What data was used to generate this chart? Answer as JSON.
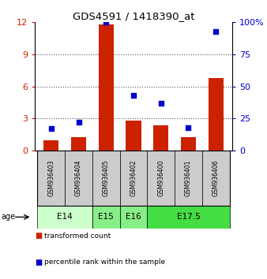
{
  "title": "GDS4591 / 1418390_at",
  "samples": [
    "GSM936403",
    "GSM936404",
    "GSM936405",
    "GSM936402",
    "GSM936400",
    "GSM936401",
    "GSM936406"
  ],
  "red_values": [
    1.0,
    1.3,
    11.8,
    2.8,
    2.4,
    1.3,
    6.8
  ],
  "blue_values": [
    17,
    22,
    100,
    43,
    37,
    18,
    93
  ],
  "ylim_left": [
    0,
    12
  ],
  "ylim_right": [
    0,
    100
  ],
  "yticks_left": [
    0,
    3,
    6,
    9,
    12
  ],
  "yticks_right": [
    0,
    25,
    50,
    75,
    100
  ],
  "groups": [
    {
      "label": "E14",
      "samples": [
        "GSM936403",
        "GSM936404"
      ],
      "color": "#ccffcc"
    },
    {
      "label": "E15",
      "samples": [
        "GSM936405"
      ],
      "color": "#88ee88"
    },
    {
      "label": "E16",
      "samples": [
        "GSM936402"
      ],
      "color": "#88ee88"
    },
    {
      "label": "E17.5",
      "samples": [
        "GSM936400",
        "GSM936401",
        "GSM936406"
      ],
      "color": "#44dd44"
    }
  ],
  "bar_color": "#cc2200",
  "dot_color": "#0000cc",
  "bar_width": 0.55,
  "sample_box_color": "#cccccc",
  "legend_red_label": "transformed count",
  "legend_blue_label": "percentile rank within the sample",
  "age_label": "age"
}
